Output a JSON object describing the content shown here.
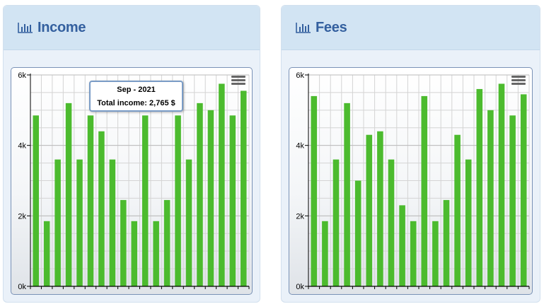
{
  "colors": {
    "bar": "#4cbb2e",
    "header_text": "#34609f"
  },
  "panels": [
    {
      "title": "Income",
      "icon": "bar-chart-icon",
      "tooltip": {
        "title": "Sep - 2021",
        "label": "Total income:",
        "value": "2,765 $"
      }
    },
    {
      "title": "Fees",
      "icon": "bar-chart-icon"
    }
  ],
  "chart_data": [
    {
      "type": "bar",
      "title": "",
      "xlabel": "",
      "ylabel": "",
      "ylim": [
        0,
        6000
      ],
      "yticks": [
        "0k",
        "2k",
        "4k",
        "6k"
      ],
      "grid": true,
      "values": [
        4850,
        1850,
        3600,
        5200,
        3600,
        4850,
        4400,
        3600,
        2450,
        1850,
        4850,
        1850,
        2450,
        4850,
        3600,
        5200,
        5000,
        5750,
        4850,
        5550
      ]
    },
    {
      "type": "bar",
      "title": "",
      "xlabel": "",
      "ylabel": "",
      "ylim": [
        0,
        6000
      ],
      "yticks": [
        "0k",
        "2k",
        "4k",
        "6k"
      ],
      "grid": true,
      "values": [
        5400,
        1850,
        3600,
        5200,
        3000,
        4300,
        4400,
        3600,
        2300,
        1850,
        5400,
        1850,
        2450,
        4300,
        3600,
        5600,
        5000,
        5750,
        4850,
        5450
      ]
    }
  ]
}
